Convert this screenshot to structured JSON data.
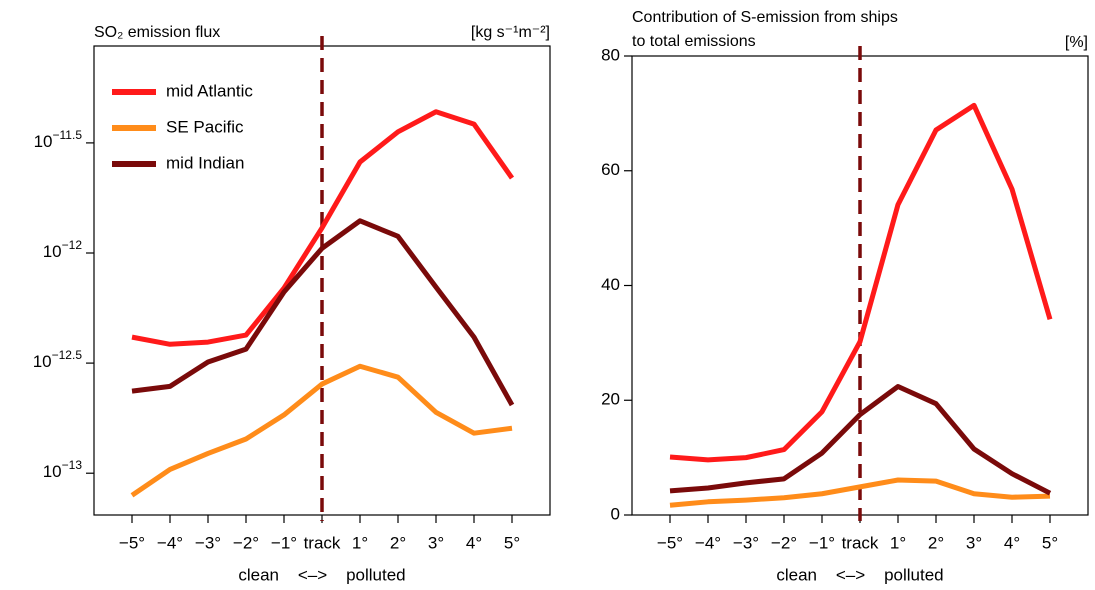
{
  "chart_data": [
    {
      "type": "line",
      "title": "SO₂ emission flux",
      "ylabel": "[kg s⁻¹m⁻²]",
      "xlabel": "clean    <–>    polluted",
      "categories": [
        "−5°",
        "−4°",
        "−3°",
        "−2°",
        "−1°",
        "track",
        "1°",
        "2°",
        "3°",
        "4°",
        "5°"
      ],
      "log": true,
      "ylim": [
        6.46e-14,
        8.71e-12
      ],
      "yticks": [
        {
          "value": 1e-13,
          "label": "10−13"
        },
        {
          "value": 3.1623e-13,
          "label": "10−12.5"
        },
        {
          "value": 1e-12,
          "label": "10−12"
        },
        {
          "value": 3.1623e-12,
          "label": "10−11.5"
        }
      ],
      "legend": "upper left",
      "series": [
        {
          "name": "mid Atlantic",
          "color": "#ff1a1a",
          "values": [
            4.15e-13,
            3.85e-13,
            3.94e-13,
            4.24e-13,
            6.93e-13,
            1.3e-12,
            2.59e-12,
            3.55e-12,
            4.38e-12,
            3.85e-12,
            2.19e-12
          ]
        },
        {
          "name": "SE Pacific",
          "color": "#ff8c1a",
          "values": [
            7.94e-14,
            1.04e-13,
            1.23e-13,
            1.43e-13,
            1.84e-13,
            2.54e-13,
            3.06e-13,
            2.73e-13,
            1.89e-13,
            1.52e-13,
            1.6e-13
          ]
        },
        {
          "name": "mid Indian",
          "color": "#7a0a0a",
          "values": [
            2.36e-13,
            2.48e-13,
            3.2e-13,
            3.66e-13,
            6.65e-13,
            1.05e-12,
            1.4e-12,
            1.19e-12,
            7e-13,
            4.15e-13,
            2.04e-13
          ]
        }
      ]
    },
    {
      "type": "line",
      "title": [
        "Contribution of S-emission from ships",
        "to total emissions"
      ],
      "ylabel": "[%]",
      "xlabel": "clean    <–>    polluted",
      "categories": [
        "−5°",
        "−4°",
        "−3°",
        "−2°",
        "−1°",
        "track",
        "1°",
        "2°",
        "3°",
        "4°",
        "5°"
      ],
      "log": false,
      "ylim": [
        0,
        80
      ],
      "yticks": [
        0,
        20,
        40,
        60,
        80
      ],
      "series": [
        {
          "color": "#ff1a1a",
          "values": [
            10.1,
            9.6,
            10.0,
            11.4,
            18.0,
            30.2,
            54.1,
            67.1,
            71.4,
            56.8,
            34.1
          ]
        },
        {
          "color": "#ff8c1a",
          "values": [
            1.7,
            2.3,
            2.6,
            3.0,
            3.7,
            4.9,
            6.1,
            5.9,
            3.7,
            3.1,
            3.3
          ]
        },
        {
          "color": "#7a0a0a",
          "values": [
            4.2,
            4.7,
            5.6,
            6.3,
            10.8,
            17.5,
            22.4,
            19.4,
            11.5,
            7.2,
            3.8
          ]
        }
      ]
    }
  ]
}
